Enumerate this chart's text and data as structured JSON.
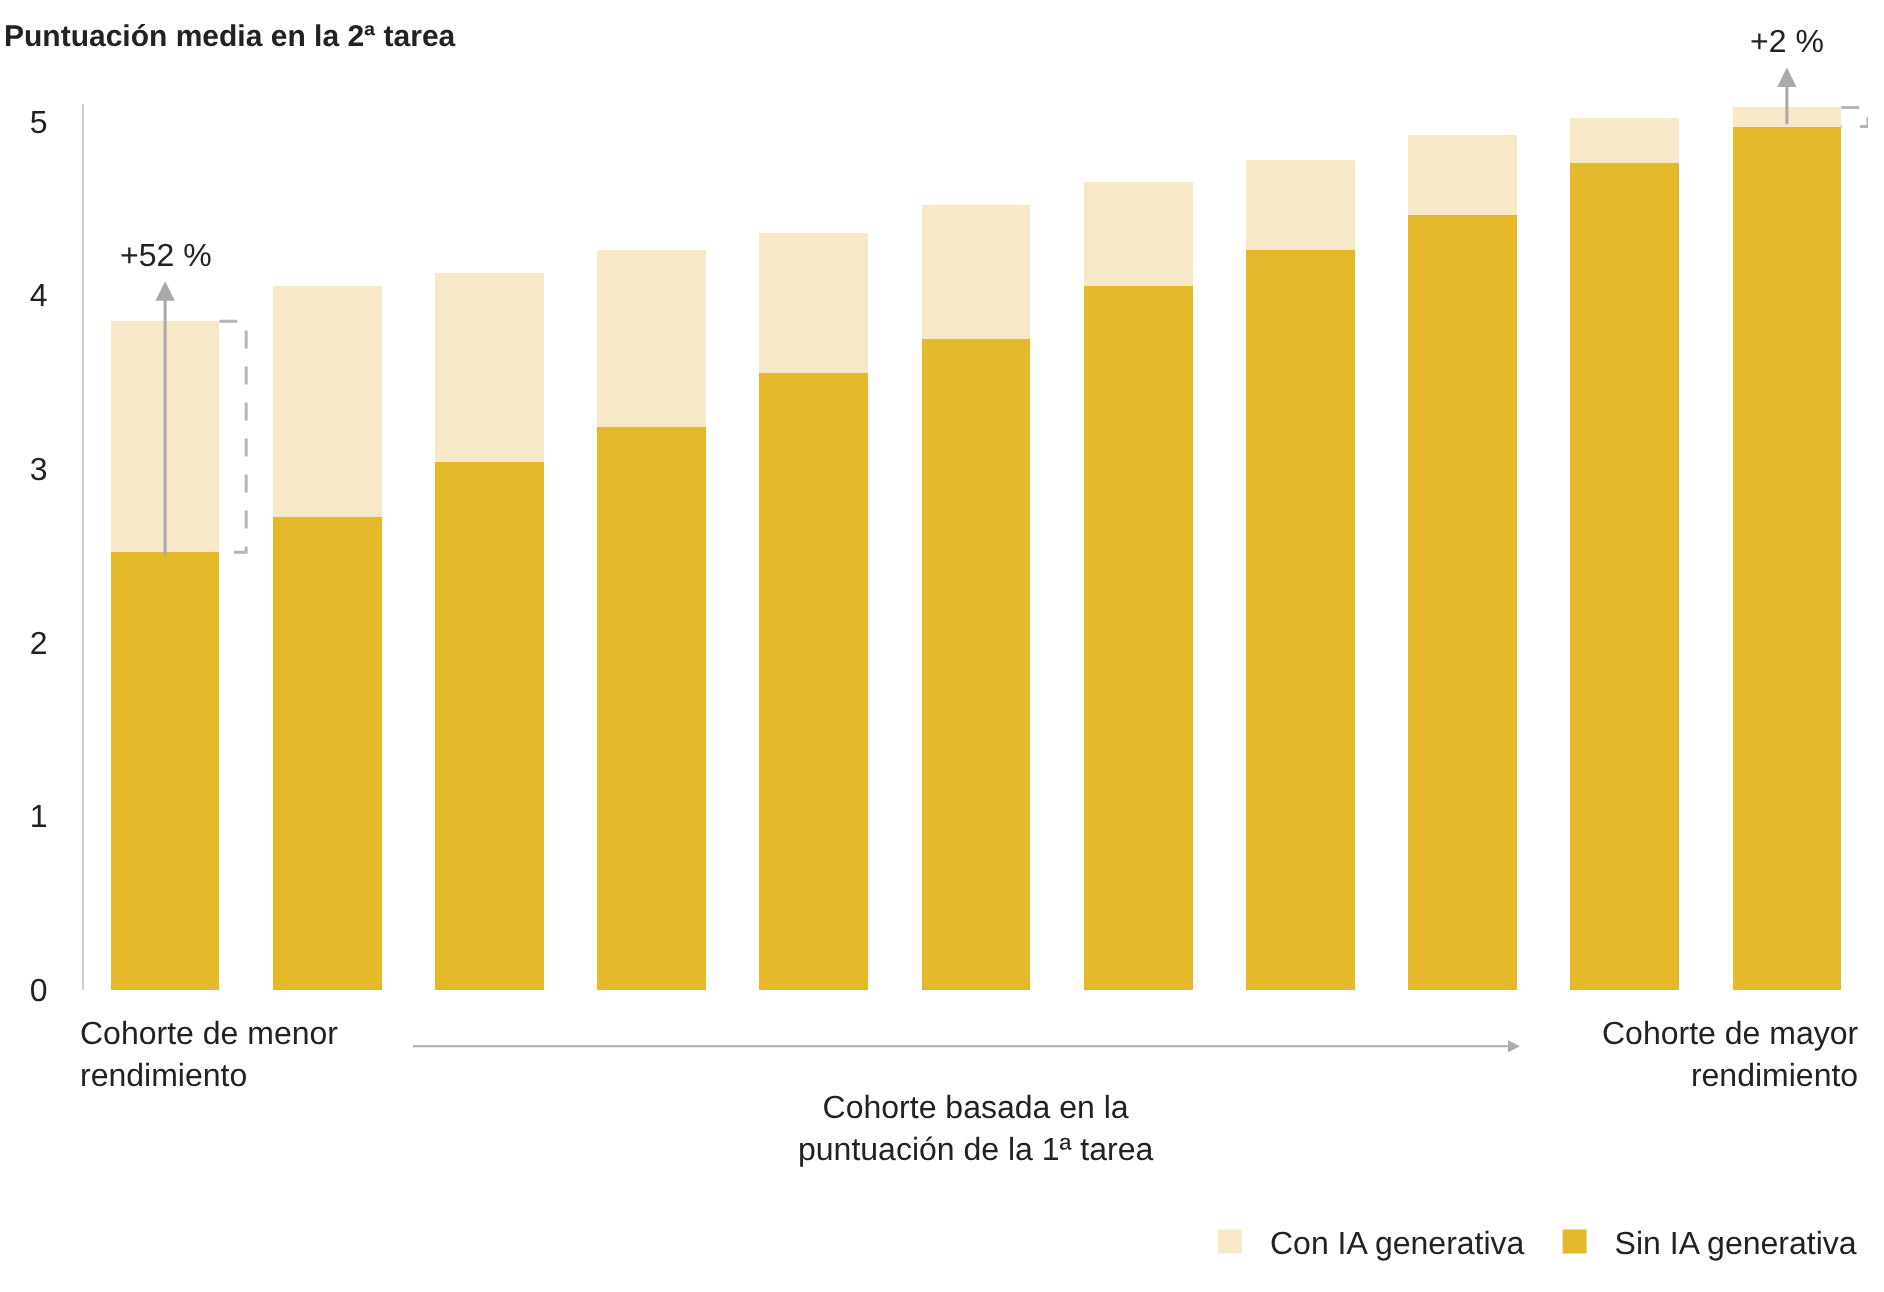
{
  "chart_data": {
    "type": "bar",
    "stacked": true,
    "title": "Puntuación media en la 2ª tarea",
    "xlabel": "Cohorte basada en la\npuntuación de la 1ª tarea",
    "categories": [
      null,
      null,
      null,
      null,
      null,
      null,
      null,
      null,
      null,
      null,
      null
    ],
    "series": [
      {
        "name": "Sin IA generativa",
        "color": "#e5b82a",
        "values": [
          2.52,
          2.72,
          3.04,
          3.24,
          3.55,
          3.75,
          4.05,
          4.26,
          4.46,
          4.76,
          4.97
        ]
      },
      {
        "name": "Con IA generativa",
        "color": "#f7e8c8",
        "values": [
          1.33,
          1.33,
          1.09,
          1.02,
          0.81,
          0.77,
          0.6,
          0.52,
          0.46,
          0.26,
          0.11
        ]
      }
    ],
    "ylim": [
      0,
      5.1
    ],
    "yticks": [
      0,
      1,
      2,
      3,
      4,
      5
    ],
    "grid": false,
    "legend": "bottom right",
    "annotations": [
      {
        "text": "+52 %",
        "y": 3.85
      },
      {
        "text": "+2 %",
        "y": 5.08
      },
      "Cohorte de menor\nrendimiento",
      "Cohorte de mayor\nrendimiento"
    ]
  }
}
